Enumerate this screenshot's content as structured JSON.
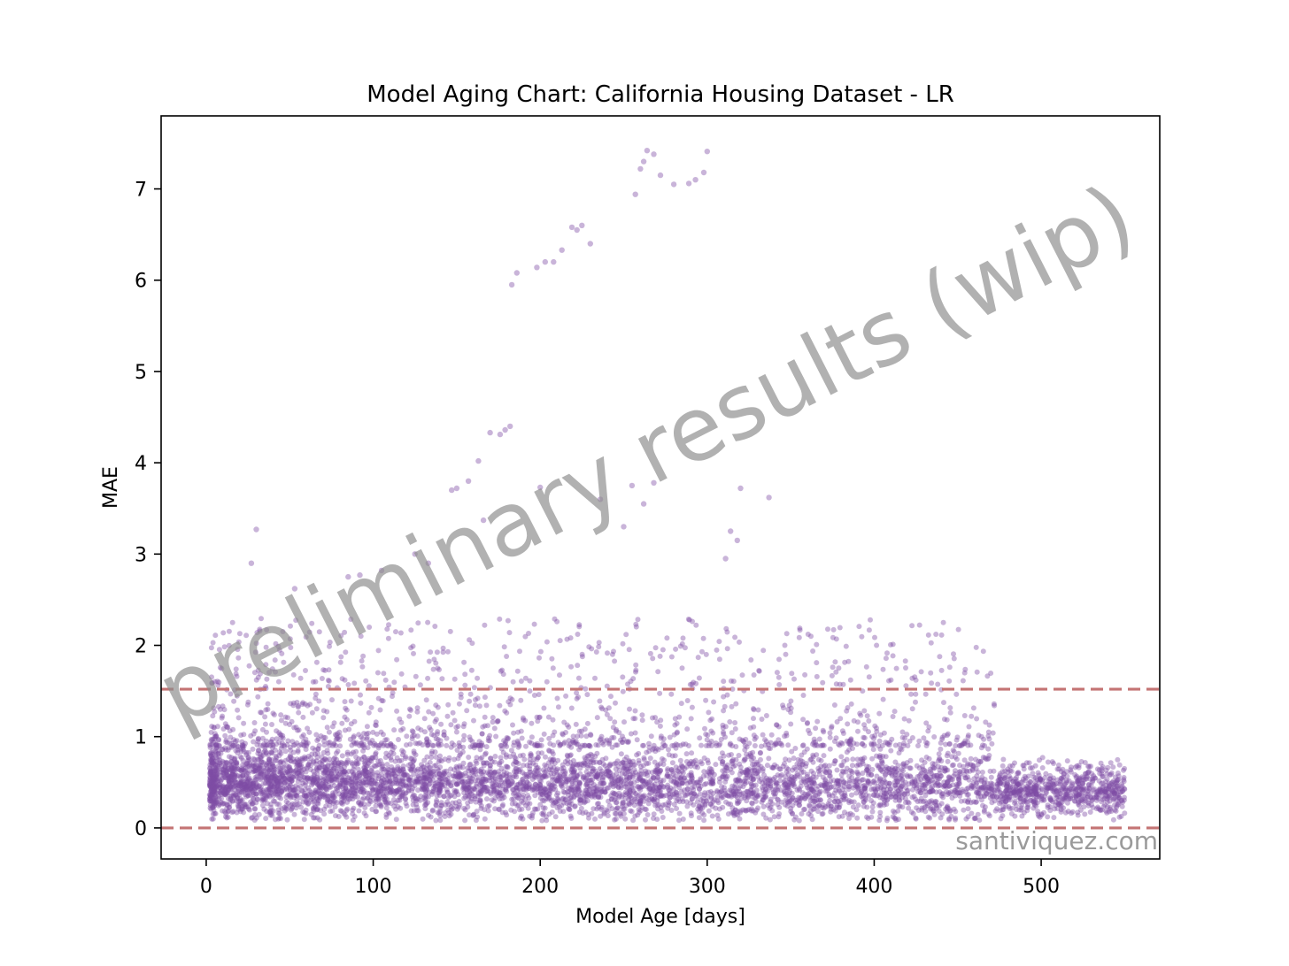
{
  "chart_data": {
    "type": "scatter",
    "title": "Model Aging Chart: California Housing Dataset - LR",
    "xlabel": "Model Age [days]",
    "ylabel": "MAE",
    "xlim": [
      -27,
      571
    ],
    "ylim": [
      -0.34,
      7.8
    ],
    "xticks": [
      "0",
      "100",
      "200",
      "300",
      "400",
      "500"
    ],
    "yticks": [
      "0",
      "1",
      "2",
      "3",
      "4",
      "5",
      "6",
      "7"
    ],
    "grid": false,
    "legend": "none",
    "point_color": "#7f4ca5",
    "point_alpha": 0.42,
    "reference_lines": [
      {
        "y": 1.52,
        "style": "dashed",
        "color": "#c47474"
      },
      {
        "y": 0.0,
        "style": "dashed",
        "color": "#c47474"
      }
    ],
    "outliers": [
      {
        "x": 264,
        "y": 7.42
      },
      {
        "x": 268,
        "y": 7.38
      },
      {
        "x": 300,
        "y": 7.41
      },
      {
        "x": 260,
        "y": 7.22
      },
      {
        "x": 272,
        "y": 7.15
      },
      {
        "x": 280,
        "y": 7.05
      },
      {
        "x": 289,
        "y": 7.06
      },
      {
        "x": 293,
        "y": 7.1
      },
      {
        "x": 298,
        "y": 7.18
      },
      {
        "x": 257,
        "y": 6.94
      },
      {
        "x": 262,
        "y": 7.3
      },
      {
        "x": 183,
        "y": 5.95
      },
      {
        "x": 186,
        "y": 6.08
      },
      {
        "x": 198,
        "y": 6.14
      },
      {
        "x": 203,
        "y": 6.2
      },
      {
        "x": 208,
        "y": 6.2
      },
      {
        "x": 213,
        "y": 6.33
      },
      {
        "x": 219,
        "y": 6.58
      },
      {
        "x": 222,
        "y": 6.55
      },
      {
        "x": 225,
        "y": 6.6
      },
      {
        "x": 230,
        "y": 6.4
      },
      {
        "x": 147,
        "y": 3.7
      },
      {
        "x": 150,
        "y": 3.72
      },
      {
        "x": 157,
        "y": 3.8
      },
      {
        "x": 163,
        "y": 4.02
      },
      {
        "x": 170,
        "y": 4.33
      },
      {
        "x": 176,
        "y": 4.31
      },
      {
        "x": 179,
        "y": 4.36
      },
      {
        "x": 182,
        "y": 4.4
      },
      {
        "x": 30,
        "y": 3.27
      },
      {
        "x": 27,
        "y": 2.9
      },
      {
        "x": 53,
        "y": 2.62
      },
      {
        "x": 85,
        "y": 2.75
      },
      {
        "x": 92,
        "y": 2.77
      },
      {
        "x": 105,
        "y": 2.82
      },
      {
        "x": 125,
        "y": 3.0
      },
      {
        "x": 133,
        "y": 2.9
      },
      {
        "x": 166,
        "y": 3.37
      },
      {
        "x": 200,
        "y": 3.73
      },
      {
        "x": 236,
        "y": 3.6
      },
      {
        "x": 255,
        "y": 3.75
      },
      {
        "x": 262,
        "y": 3.55
      },
      {
        "x": 250,
        "y": 3.3
      },
      {
        "x": 314,
        "y": 3.25
      },
      {
        "x": 318,
        "y": 3.15
      },
      {
        "x": 311,
        "y": 2.95
      },
      {
        "x": 337,
        "y": 3.62
      },
      {
        "x": 320,
        "y": 3.72
      },
      {
        "x": 268,
        "y": 3.78
      }
    ],
    "watermark": "preliminary results (wip)",
    "credit": "santiviquez.com"
  }
}
